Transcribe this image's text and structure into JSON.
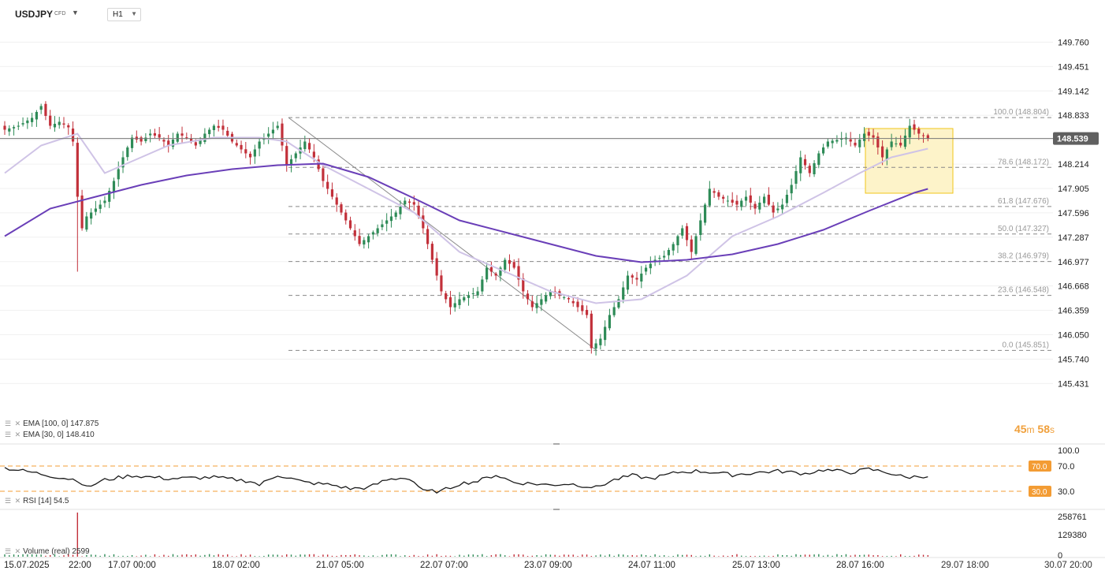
{
  "header": {
    "symbol": "USDJPY",
    "symbol_type": "CFD",
    "timeframe": "H1"
  },
  "colors": {
    "bull": "#2e8b57",
    "bear": "#c2303a",
    "ema100": "#6a3fb8",
    "ema30": "#cfc3e6",
    "fib": "#888888",
    "rsi_level": "#f39c34",
    "highlight_fill": "#fdf3c9",
    "highlight_stroke": "#f0c419",
    "price_tag": "#606060"
  },
  "legend": {
    "ema100": "EMA [100,  0]  147.875",
    "ema30": "EMA [30,  0]  148.410",
    "rsi": "RSI [14]  54.5",
    "volume": "Volume  (real)  2599"
  },
  "countdown": {
    "minutes": "45",
    "m": "m",
    "seconds": "58",
    "s": "s"
  },
  "chart_data": {
    "type": "candlestick",
    "symbol": "USDJPY",
    "timeframe": "H1",
    "price_axis": {
      "ticks": [
        "149.760",
        "149.451",
        "149.142",
        "148.833",
        "148.524",
        "148.214",
        "147.905",
        "147.596",
        "147.287",
        "146.977",
        "146.668",
        "146.359",
        "146.050",
        "145.740",
        "145.431"
      ],
      "range": [
        145.431,
        149.96
      ]
    },
    "current_price": "148.539",
    "time_axis": [
      "15.07.2025",
      "22:00",
      "17.07  00:00",
      "18.07  02:00",
      "21.07  05:00",
      "22.07  07:00",
      "23.07  09:00",
      "24.07  11:00",
      "25.07  13:00",
      "28.07  16:00",
      "29.07  18:00",
      "30.07  20:00"
    ],
    "fibonacci": [
      {
        "label": "100.0 (148.804)",
        "price": 148.804
      },
      {
        "label": "78.6 (148.172)",
        "price": 148.172
      },
      {
        "label": "61.8 (147.676)",
        "price": 147.676
      },
      {
        "label": "50.0 (147.327)",
        "price": 147.327
      },
      {
        "label": "38.2 (146.979)",
        "price": 146.979
      },
      {
        "label": "23.6 (146.548)",
        "price": 146.548
      },
      {
        "label": "0.0 (145.851)",
        "price": 145.851
      }
    ],
    "price_path": [
      [
        0,
        148.65
      ],
      [
        3,
        148.7
      ],
      [
        6,
        148.8
      ],
      [
        8,
        148.95
      ],
      [
        10,
        148.7
      ],
      [
        12,
        148.75
      ],
      [
        14,
        148.68
      ],
      [
        15,
        148.5
      ],
      [
        16,
        147.8
      ],
      [
        17,
        147.4
      ],
      [
        18,
        147.55
      ],
      [
        20,
        147.65
      ],
      [
        22,
        147.75
      ],
      [
        24,
        148.0
      ],
      [
        26,
        148.3
      ],
      [
        28,
        148.55
      ],
      [
        30,
        148.5
      ],
      [
        32,
        148.6
      ],
      [
        34,
        148.55
      ],
      [
        36,
        148.45
      ],
      [
        38,
        148.6
      ],
      [
        40,
        148.55
      ],
      [
        42,
        148.45
      ],
      [
        44,
        148.6
      ],
      [
        46,
        148.7
      ],
      [
        48,
        148.65
      ],
      [
        50,
        148.5
      ],
      [
        52,
        148.4
      ],
      [
        54,
        148.3
      ],
      [
        56,
        148.5
      ],
      [
        58,
        148.6
      ],
      [
        60,
        148.7
      ],
      [
        62,
        148.2
      ],
      [
        64,
        148.35
      ],
      [
        66,
        148.5
      ],
      [
        68,
        148.3
      ],
      [
        70,
        148.0
      ],
      [
        72,
        147.8
      ],
      [
        74,
        147.6
      ],
      [
        76,
        147.4
      ],
      [
        78,
        147.2
      ],
      [
        80,
        147.3
      ],
      [
        82,
        147.4
      ],
      [
        84,
        147.5
      ],
      [
        86,
        147.6
      ],
      [
        88,
        147.75
      ],
      [
        90,
        147.7
      ],
      [
        92,
        147.4
      ],
      [
        94,
        147.0
      ],
      [
        96,
        146.6
      ],
      [
        98,
        146.4
      ],
      [
        100,
        146.5
      ],
      [
        102,
        146.55
      ],
      [
        104,
        146.6
      ],
      [
        106,
        146.9
      ],
      [
        108,
        146.8
      ],
      [
        110,
        147.0
      ],
      [
        112,
        146.9
      ],
      [
        114,
        146.6
      ],
      [
        116,
        146.4
      ],
      [
        118,
        146.5
      ],
      [
        120,
        146.6
      ],
      [
        122,
        146.55
      ],
      [
        124,
        146.5
      ],
      [
        126,
        146.4
      ],
      [
        128,
        146.3
      ],
      [
        129,
        145.88
      ],
      [
        131,
        146.0
      ],
      [
        133,
        146.3
      ],
      [
        135,
        146.5
      ],
      [
        137,
        146.8
      ],
      [
        139,
        146.75
      ],
      [
        141,
        146.9
      ],
      [
        143,
        147.0
      ],
      [
        145,
        147.05
      ],
      [
        147,
        147.2
      ],
      [
        149,
        147.4
      ],
      [
        151,
        147.1
      ],
      [
        153,
        147.5
      ],
      [
        155,
        147.9
      ],
      [
        157,
        147.8
      ],
      [
        159,
        147.75
      ],
      [
        161,
        147.7
      ],
      [
        163,
        147.8
      ],
      [
        165,
        147.65
      ],
      [
        167,
        147.8
      ],
      [
        169,
        147.6
      ],
      [
        171,
        147.7
      ],
      [
        173,
        147.95
      ],
      [
        175,
        148.3
      ],
      [
        177,
        148.1
      ],
      [
        179,
        148.35
      ],
      [
        181,
        148.5
      ],
      [
        183,
        148.52
      ],
      [
        185,
        148.55
      ],
      [
        187,
        148.45
      ],
      [
        189,
        148.6
      ],
      [
        191,
        148.55
      ],
      [
        193,
        148.3
      ],
      [
        195,
        148.5
      ],
      [
        197,
        148.45
      ],
      [
        199,
        148.7
      ],
      [
        201,
        148.6
      ],
      [
        203,
        148.54
      ]
    ],
    "ema100_path": [
      [
        0,
        147.3
      ],
      [
        10,
        147.65
      ],
      [
        20,
        147.8
      ],
      [
        30,
        147.95
      ],
      [
        40,
        148.07
      ],
      [
        50,
        148.15
      ],
      [
        60,
        148.2
      ],
      [
        70,
        148.22
      ],
      [
        80,
        148.05
      ],
      [
        90,
        147.78
      ],
      [
        100,
        147.5
      ],
      [
        110,
        147.35
      ],
      [
        120,
        147.2
      ],
      [
        130,
        147.05
      ],
      [
        140,
        146.97
      ],
      [
        150,
        147.0
      ],
      [
        160,
        147.07
      ],
      [
        170,
        147.2
      ],
      [
        180,
        147.38
      ],
      [
        190,
        147.62
      ],
      [
        200,
        147.85
      ],
      [
        203,
        147.9
      ]
    ],
    "ema30_path": [
      [
        0,
        148.1
      ],
      [
        8,
        148.45
      ],
      [
        16,
        148.6
      ],
      [
        22,
        148.1
      ],
      [
        28,
        148.25
      ],
      [
        36,
        148.45
      ],
      [
        46,
        148.55
      ],
      [
        56,
        148.55
      ],
      [
        62,
        148.5
      ],
      [
        70,
        148.2
      ],
      [
        80,
        147.9
      ],
      [
        90,
        147.6
      ],
      [
        100,
        147.1
      ],
      [
        110,
        146.85
      ],
      [
        120,
        146.6
      ],
      [
        130,
        146.45
      ],
      [
        140,
        146.5
      ],
      [
        150,
        146.8
      ],
      [
        160,
        147.3
      ],
      [
        170,
        147.55
      ],
      [
        180,
        147.85
      ],
      [
        188,
        148.1
      ],
      [
        195,
        148.3
      ],
      [
        203,
        148.41
      ]
    ],
    "rsi": {
      "range": [
        0,
        100
      ],
      "levels": [
        70.0,
        30.0
      ],
      "axis_labels": [
        "100.0",
        "70.0",
        "30.0"
      ],
      "value": 54.5,
      "path": [
        [
          0,
          67
        ],
        [
          6,
          60
        ],
        [
          12,
          52
        ],
        [
          16,
          48
        ],
        [
          18,
          36
        ],
        [
          22,
          48
        ],
        [
          28,
          55
        ],
        [
          36,
          50
        ],
        [
          46,
          52
        ],
        [
          54,
          46
        ],
        [
          56,
          40
        ],
        [
          60,
          56
        ],
        [
          66,
          44
        ],
        [
          72,
          40
        ],
        [
          76,
          34
        ],
        [
          80,
          36
        ],
        [
          84,
          48
        ],
        [
          88,
          52
        ],
        [
          90,
          45
        ],
        [
          92,
          30
        ],
        [
          96,
          30
        ],
        [
          100,
          42
        ],
        [
          104,
          46
        ],
        [
          108,
          56
        ],
        [
          112,
          44
        ],
        [
          116,
          42
        ],
        [
          120,
          40
        ],
        [
          124,
          42
        ],
        [
          128,
          38
        ],
        [
          130,
          36
        ],
        [
          134,
          48
        ],
        [
          138,
          55
        ],
        [
          142,
          50
        ],
        [
          148,
          60
        ],
        [
          152,
          62
        ],
        [
          156,
          60
        ],
        [
          160,
          56
        ],
        [
          166,
          60
        ],
        [
          170,
          62
        ],
        [
          176,
          58
        ],
        [
          180,
          64
        ],
        [
          186,
          60
        ],
        [
          190,
          65
        ],
        [
          194,
          60
        ],
        [
          198,
          52
        ],
        [
          203,
          54.5
        ]
      ]
    },
    "volume": {
      "axis_labels": [
        "258761",
        "129380",
        "0"
      ],
      "max": 258761,
      "spike_index": 16,
      "spike": 258761,
      "last": 2599
    }
  }
}
